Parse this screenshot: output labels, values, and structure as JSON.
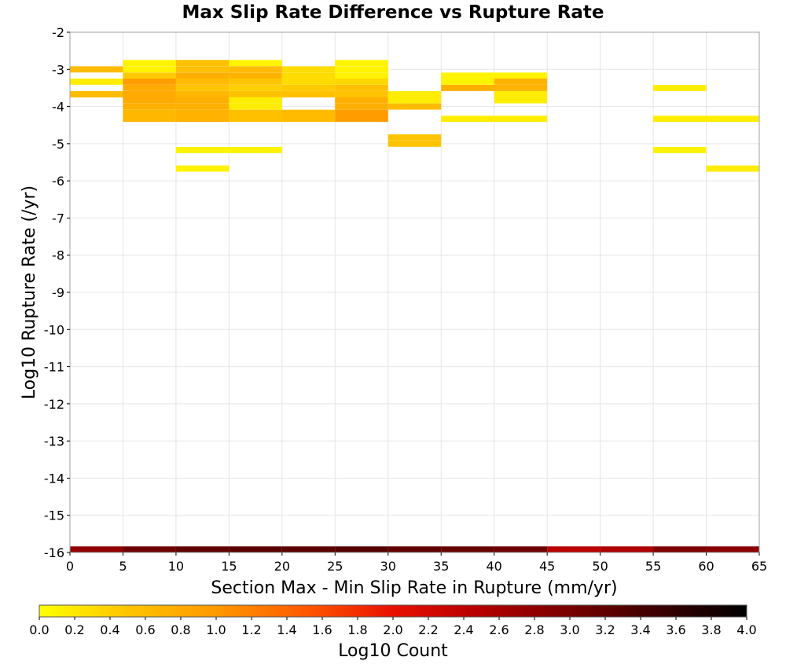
{
  "chart_data": {
    "type": "heatmap",
    "title": "Max Slip Rate Difference vs Rupture Rate",
    "xlabel": "Section Max - Min Slip Rate in Rupture (mm/yr)",
    "ylabel": "Log10 Rupture Rate (/yr)",
    "xlim": [
      0,
      65
    ],
    "ylim": [
      -16,
      -2
    ],
    "x_ticks": [
      "0",
      "5",
      "10",
      "15",
      "20",
      "25",
      "30",
      "35",
      "40",
      "45",
      "50",
      "55",
      "60",
      "65"
    ],
    "y_ticks": [
      "-2",
      "-3",
      "-4",
      "-5",
      "-6",
      "-7",
      "-8",
      "-9",
      "-10",
      "-11",
      "-12",
      "-13",
      "-14",
      "-15",
      "-16"
    ],
    "grid": true,
    "x_bin_width": 5,
    "y_bin_height": 0.167,
    "colorbar": {
      "label": "Log10 Count",
      "min": 0.0,
      "max": 4.0,
      "ticks": [
        "0.0",
        "0.2",
        "0.4",
        "0.6",
        "0.8",
        "1.0",
        "1.2",
        "1.4",
        "1.6",
        "1.8",
        "2.0",
        "2.2",
        "2.4",
        "2.6",
        "2.8",
        "3.0",
        "3.2",
        "3.4",
        "3.6",
        "3.8",
        "4.0"
      ],
      "stops": [
        {
          "v": 0.0,
          "color": "#ffff00"
        },
        {
          "v": 0.5,
          "color": "#ffc400"
        },
        {
          "v": 1.0,
          "color": "#ff9900"
        },
        {
          "v": 1.5,
          "color": "#ff5a00"
        },
        {
          "v": 2.0,
          "color": "#e81000"
        },
        {
          "v": 2.5,
          "color": "#b40000"
        },
        {
          "v": 3.0,
          "color": "#780000"
        },
        {
          "v": 3.5,
          "color": "#3c0000"
        },
        {
          "v": 4.0,
          "color": "#000000"
        }
      ]
    },
    "cells": [
      {
        "x": 0,
        "y": -3.0,
        "value": 0.6
      },
      {
        "x": 0,
        "y": -3.33,
        "value": 0.15
      },
      {
        "x": 0,
        "y": -3.67,
        "value": 0.6
      },
      {
        "x": 5,
        "y": -2.83,
        "value": 0.1
      },
      {
        "x": 5,
        "y": -3.0,
        "value": 0.1
      },
      {
        "x": 5,
        "y": -3.17,
        "value": 0.45
      },
      {
        "x": 5,
        "y": -3.33,
        "value": 0.95
      },
      {
        "x": 5,
        "y": -3.5,
        "value": 0.8
      },
      {
        "x": 5,
        "y": -3.67,
        "value": 0.8
      },
      {
        "x": 5,
        "y": -3.83,
        "value": 0.8
      },
      {
        "x": 5,
        "y": -4.0,
        "value": 0.75
      },
      {
        "x": 5,
        "y": -4.17,
        "value": 0.65
      },
      {
        "x": 5,
        "y": -4.33,
        "value": 0.65
      },
      {
        "x": 10,
        "y": -2.83,
        "value": 0.55
      },
      {
        "x": 10,
        "y": -3.0,
        "value": 0.55
      },
      {
        "x": 10,
        "y": -3.17,
        "value": 0.75
      },
      {
        "x": 10,
        "y": -3.33,
        "value": 0.6
      },
      {
        "x": 10,
        "y": -3.5,
        "value": 0.5
      },
      {
        "x": 10,
        "y": -3.67,
        "value": 0.65
      },
      {
        "x": 10,
        "y": -3.83,
        "value": 0.75
      },
      {
        "x": 10,
        "y": -4.0,
        "value": 0.75
      },
      {
        "x": 10,
        "y": -4.17,
        "value": 0.7
      },
      {
        "x": 10,
        "y": -4.33,
        "value": 0.7
      },
      {
        "x": 10,
        "y": -5.17,
        "value": 0.1
      },
      {
        "x": 10,
        "y": -5.67,
        "value": 0.1
      },
      {
        "x": 15,
        "y": -2.83,
        "value": 0.1
      },
      {
        "x": 15,
        "y": -3.0,
        "value": 0.6
      },
      {
        "x": 15,
        "y": -3.17,
        "value": 0.7
      },
      {
        "x": 15,
        "y": -3.33,
        "value": 0.5
      },
      {
        "x": 15,
        "y": -3.5,
        "value": 0.4
      },
      {
        "x": 15,
        "y": -3.67,
        "value": 0.55
      },
      {
        "x": 15,
        "y": -3.83,
        "value": 0.15
      },
      {
        "x": 15,
        "y": -4.0,
        "value": 0.15
      },
      {
        "x": 15,
        "y": -4.17,
        "value": 0.55
      },
      {
        "x": 15,
        "y": -4.33,
        "value": 0.55
      },
      {
        "x": 15,
        "y": -5.17,
        "value": 0.1
      },
      {
        "x": 20,
        "y": -3.0,
        "value": 0.3
      },
      {
        "x": 20,
        "y": -3.17,
        "value": 0.3
      },
      {
        "x": 20,
        "y": -3.33,
        "value": 0.3
      },
      {
        "x": 20,
        "y": -3.5,
        "value": 0.45
      },
      {
        "x": 20,
        "y": -3.67,
        "value": 0.55
      },
      {
        "x": 20,
        "y": -4.17,
        "value": 0.6
      },
      {
        "x": 20,
        "y": -4.33,
        "value": 0.6
      },
      {
        "x": 25,
        "y": -2.83,
        "value": 0.1
      },
      {
        "x": 25,
        "y": -3.0,
        "value": 0.1
      },
      {
        "x": 25,
        "y": -3.17,
        "value": 0.1
      },
      {
        "x": 25,
        "y": -3.33,
        "value": 0.35
      },
      {
        "x": 25,
        "y": -3.5,
        "value": 0.55
      },
      {
        "x": 25,
        "y": -3.67,
        "value": 0.5
      },
      {
        "x": 25,
        "y": -3.83,
        "value": 0.75
      },
      {
        "x": 25,
        "y": -4.0,
        "value": 0.75
      },
      {
        "x": 25,
        "y": -4.17,
        "value": 0.95
      },
      {
        "x": 25,
        "y": -4.33,
        "value": 0.95
      },
      {
        "x": 30,
        "y": -3.67,
        "value": 0.15
      },
      {
        "x": 30,
        "y": -3.83,
        "value": 0.15
      },
      {
        "x": 30,
        "y": -4.0,
        "value": 0.6
      },
      {
        "x": 30,
        "y": -4.83,
        "value": 0.5
      },
      {
        "x": 30,
        "y": -5.0,
        "value": 0.5
      },
      {
        "x": 35,
        "y": -3.17,
        "value": 0.1
      },
      {
        "x": 35,
        "y": -3.33,
        "value": 0.1
      },
      {
        "x": 35,
        "y": -3.5,
        "value": 0.75
      },
      {
        "x": 35,
        "y": -4.33,
        "value": 0.15
      },
      {
        "x": 40,
        "y": -3.17,
        "value": 0.1
      },
      {
        "x": 40,
        "y": -3.33,
        "value": 0.7
      },
      {
        "x": 40,
        "y": -3.5,
        "value": 0.7
      },
      {
        "x": 40,
        "y": -3.67,
        "value": 0.15
      },
      {
        "x": 40,
        "y": -3.83,
        "value": 0.15
      },
      {
        "x": 40,
        "y": -4.33,
        "value": 0.15
      },
      {
        "x": 55,
        "y": -3.5,
        "value": 0.15
      },
      {
        "x": 55,
        "y": -4.33,
        "value": 0.15
      },
      {
        "x": 55,
        "y": -5.17,
        "value": 0.1
      },
      {
        "x": 60,
        "y": -4.33,
        "value": 0.15
      },
      {
        "x": 60,
        "y": -5.67,
        "value": 0.15
      },
      {
        "x": 0,
        "y": -15.92,
        "value": 2.8
      },
      {
        "x": 5,
        "y": -15.92,
        "value": 3.1
      },
      {
        "x": 10,
        "y": -15.92,
        "value": 3.2
      },
      {
        "x": 15,
        "y": -15.92,
        "value": 3.25
      },
      {
        "x": 20,
        "y": -15.92,
        "value": 3.25
      },
      {
        "x": 25,
        "y": -15.92,
        "value": 3.3
      },
      {
        "x": 30,
        "y": -15.92,
        "value": 3.2
      },
      {
        "x": 35,
        "y": -15.92,
        "value": 3.15
      },
      {
        "x": 40,
        "y": -15.92,
        "value": 3.1
      },
      {
        "x": 45,
        "y": -15.92,
        "value": 2.45
      },
      {
        "x": 50,
        "y": -15.92,
        "value": 2.55
      },
      {
        "x": 55,
        "y": -15.92,
        "value": 2.95
      },
      {
        "x": 60,
        "y": -15.92,
        "value": 2.85
      }
    ]
  }
}
